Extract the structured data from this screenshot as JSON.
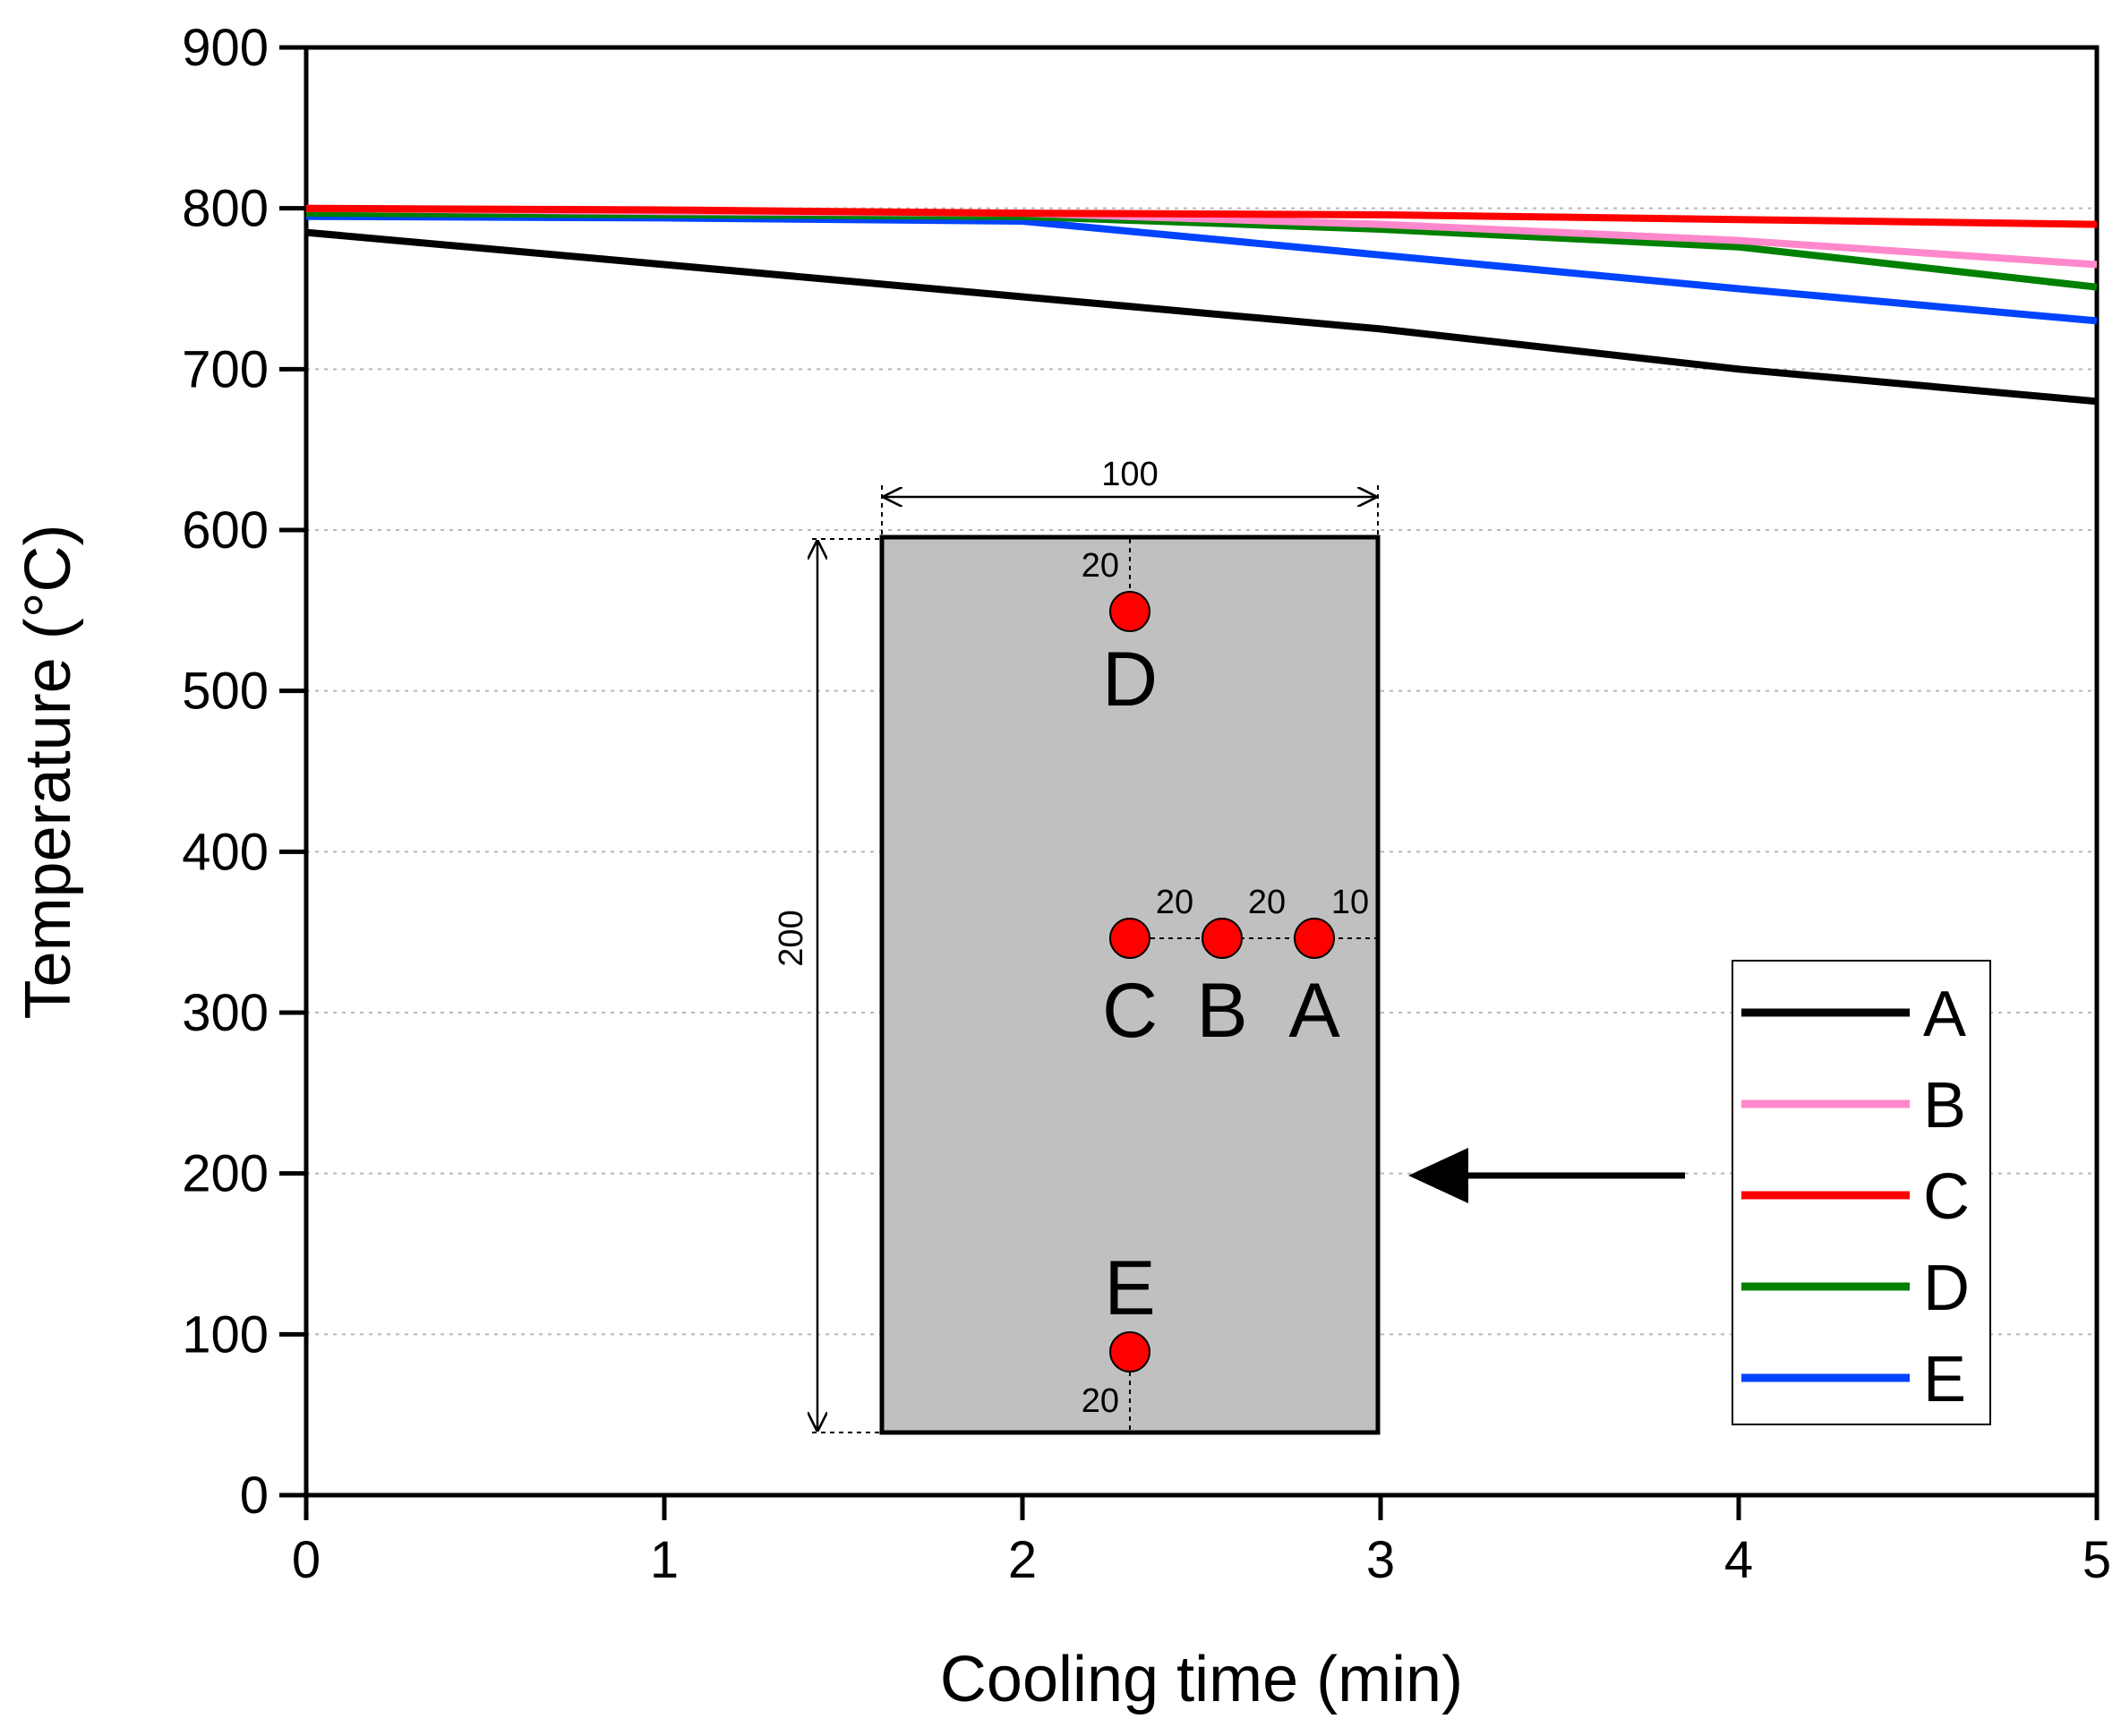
{
  "chart_data": {
    "type": "line",
    "title": "",
    "xlabel": "Cooling time (min)",
    "ylabel": "Temperature (°C)",
    "xlim": [
      0,
      5
    ],
    "ylim": [
      0,
      900
    ],
    "x_ticks": [
      0,
      1,
      2,
      3,
      4,
      5
    ],
    "y_ticks": [
      0,
      100,
      200,
      300,
      400,
      500,
      600,
      700,
      800,
      900
    ],
    "grid": "horizontal dotted",
    "legend_position": "lower-right",
    "series": [
      {
        "name": "A",
        "color": "#000000",
        "x": [
          0,
          1,
          2,
          3,
          4,
          5
        ],
        "y": [
          785,
          765,
          745,
          725,
          700,
          680
        ]
      },
      {
        "name": "B",
        "color": "#ff88cc",
        "x": [
          0,
          1,
          2,
          3,
          4,
          5
        ],
        "y": [
          800,
          798,
          797,
          790,
          780,
          765
        ]
      },
      {
        "name": "C",
        "color": "#ff0000",
        "x": [
          0,
          1,
          2,
          3,
          4,
          5
        ],
        "y": [
          800,
          799,
          797,
          796,
          793,
          790
        ]
      },
      {
        "name": "D",
        "color": "#008000",
        "x": [
          0,
          1,
          2,
          3,
          4,
          5
        ],
        "y": [
          797,
          796,
          795,
          787,
          776,
          751
        ]
      },
      {
        "name": "E",
        "color": "#0044ff",
        "x": [
          0,
          1,
          2,
          3,
          4,
          5
        ],
        "y": [
          795,
          794,
          792,
          771,
          750,
          730
        ]
      }
    ],
    "inset": {
      "width_label": "100",
      "height_label": "200",
      "spacing_labels": {
        "d_top": "20",
        "c_b": "20",
        "b_a": "20",
        "a_edge": "10",
        "e_bottom": "20"
      },
      "points": [
        "A",
        "B",
        "C",
        "D",
        "E"
      ],
      "point_color": "#ff0000",
      "plate_color": "#c0c0c0"
    }
  }
}
